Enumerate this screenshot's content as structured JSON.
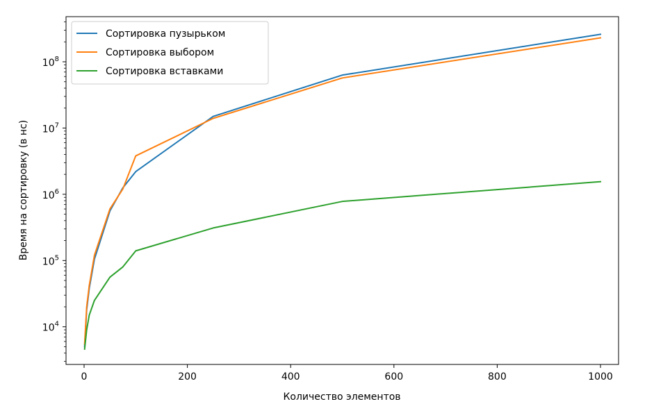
{
  "chart_data": {
    "type": "line",
    "xlabel": "Количество элементов",
    "ylabel": "Время на сортировку (в нс)",
    "xlim": [
      -35,
      1035
    ],
    "ylim": [
      2700,
      480000000
    ],
    "yscale": "log",
    "grid": false,
    "legend_position": "top-left",
    "x_ticks": [
      0,
      200,
      400,
      600,
      800,
      1000
    ],
    "y_ticks": [
      {
        "value": 10000,
        "base": "10",
        "exp": "4"
      },
      {
        "value": 100000,
        "base": "10",
        "exp": "5"
      },
      {
        "value": 1000000,
        "base": "10",
        "exp": "6"
      },
      {
        "value": 10000000,
        "base": "10",
        "exp": "7"
      },
      {
        "value": 100000000,
        "base": "10",
        "exp": "8"
      }
    ],
    "series": [
      {
        "name": "Сортировка пузырьком",
        "color": "#1f77b4",
        "x": [
          1,
          5,
          10,
          20,
          50,
          75,
          100,
          250,
          500,
          1000
        ],
        "y": [
          5000,
          18000,
          38000,
          105000,
          560000,
          1250000,
          2200000,
          15000000,
          63000000,
          260000000
        ]
      },
      {
        "name": "Сортировка выбором",
        "color": "#ff7f0e",
        "x": [
          1,
          5,
          10,
          20,
          50,
          75,
          100,
          250,
          500,
          1000
        ],
        "y": [
          5500,
          20000,
          42000,
          120000,
          600000,
          1200000,
          3800000,
          14000000,
          57000000,
          230000000
        ]
      },
      {
        "name": "Сортировка вставками",
        "color": "#2ca02c",
        "x": [
          1,
          5,
          10,
          20,
          50,
          75,
          100,
          250,
          500,
          1000
        ],
        "y": [
          4600,
          9000,
          15000,
          25000,
          56000,
          80000,
          140000,
          310000,
          780000,
          1550000
        ]
      }
    ]
  }
}
